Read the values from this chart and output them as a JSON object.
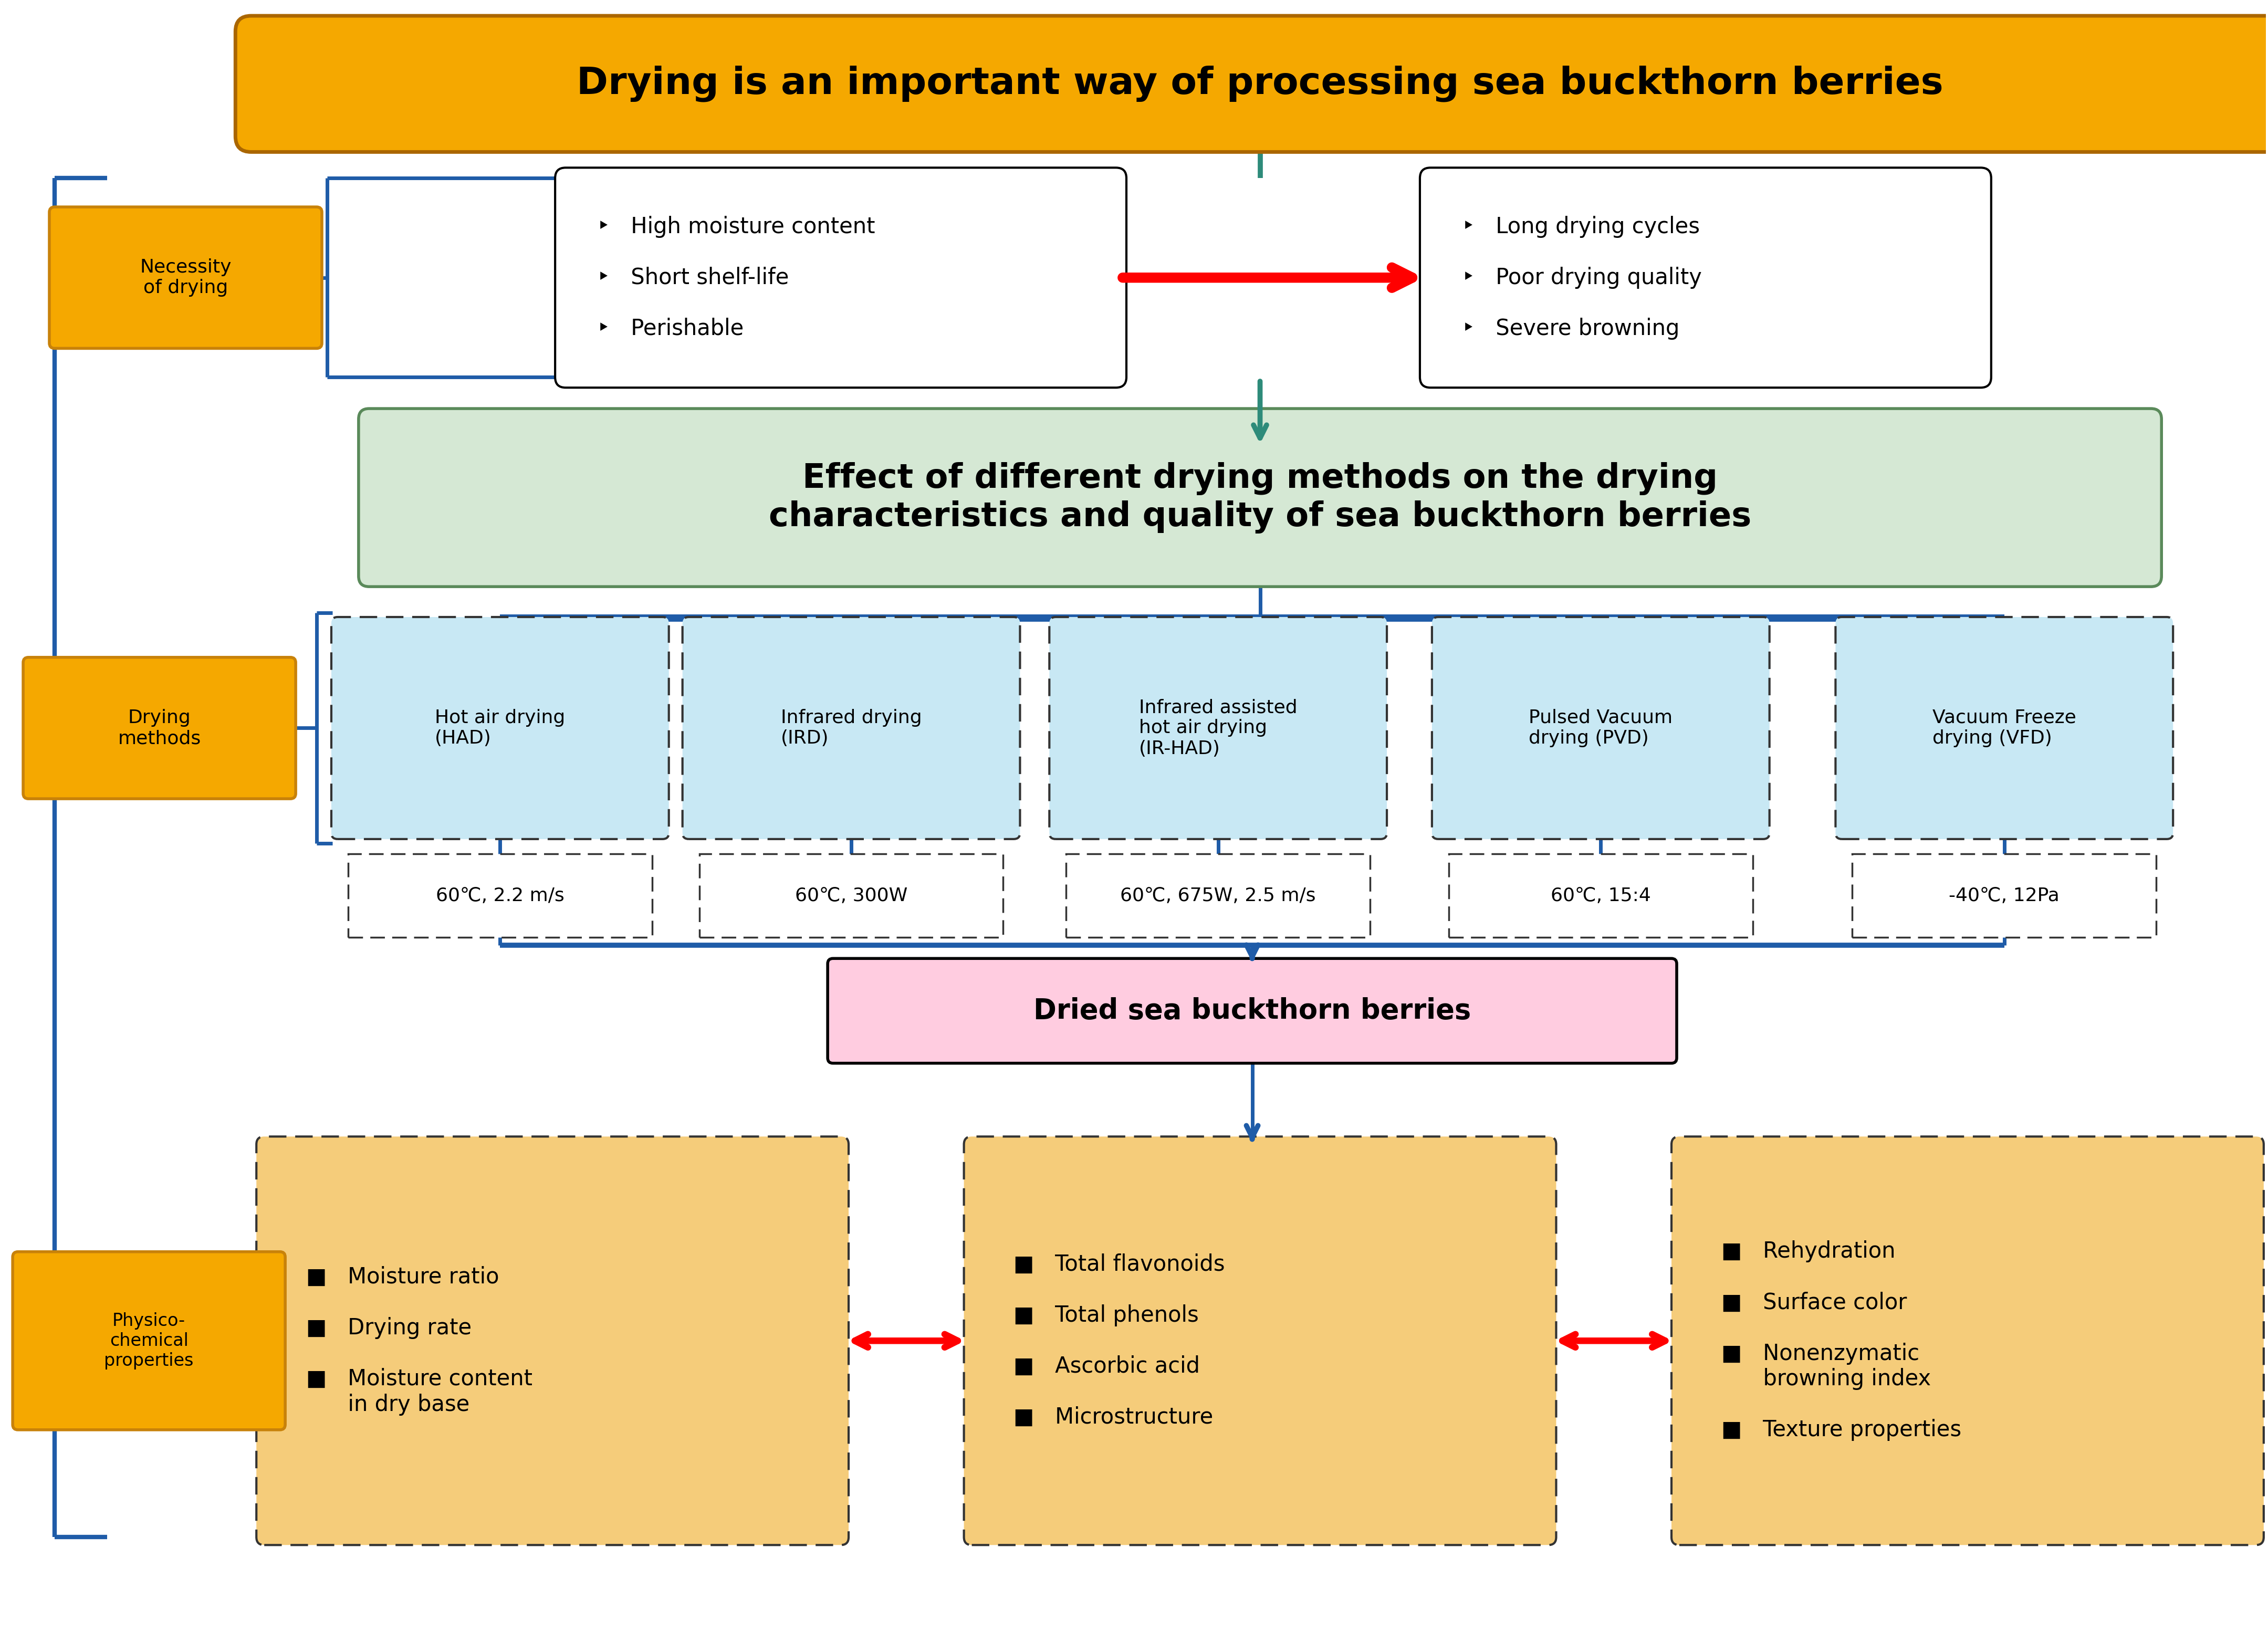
{
  "title_box": {
    "text": "Drying is an important way of processing sea buckthorn berries",
    "bg_color": "#F5A800",
    "text_color": "#000000",
    "fontsize": 52,
    "bold": true
  },
  "necessity_label": {
    "text": "Necessity\nof drying",
    "bg_color": "#F5A800",
    "text_color": "#000000",
    "border_color": "#C8820A",
    "fontsize": 26
  },
  "left_box": {
    "text": "‣   High moisture content\n\n‣   Short shelf-life\n\n‣   Perishable",
    "bg_color": "#FFFFFF",
    "text_color": "#000000",
    "fontsize": 30
  },
  "right_box": {
    "text": "‣   Long drying cycles\n\n‣   Poor drying quality\n\n‣   Severe browning",
    "bg_color": "#FFFFFF",
    "text_color": "#000000",
    "fontsize": 30
  },
  "green_box": {
    "text": "Effect of different drying methods on the drying\ncharacteristics and quality of sea buckthorn berries",
    "bg_color": "#D5E8D4",
    "text_color": "#000000",
    "fontsize": 46,
    "bold": true
  },
  "drying_methods_label": {
    "text": "Drying\nmethods",
    "bg_color": "#F5A800",
    "text_color": "#000000",
    "border_color": "#C8820A",
    "fontsize": 26
  },
  "method_boxes": [
    {
      "text": "Hot air drying\n(HAD)",
      "bg_color": "#C8E8F4",
      "text_color": "#000000"
    },
    {
      "text": "Infrared drying\n(IRD)",
      "bg_color": "#C8E8F4",
      "text_color": "#000000"
    },
    {
      "text": "Infrared assisted\nhot air drying\n(IR-HAD)",
      "bg_color": "#C8E8F4",
      "text_color": "#000000"
    },
    {
      "text": "Pulsed Vacuum\ndrying (PVD)",
      "bg_color": "#C8E8F4",
      "text_color": "#000000"
    },
    {
      "text": "Vacuum Freeze\ndrying (VFD)",
      "bg_color": "#C8E8F4",
      "text_color": "#000000"
    }
  ],
  "param_boxes": [
    {
      "text": "60℃, 2.2 m/s"
    },
    {
      "text": "60℃, 300W"
    },
    {
      "text": "60℃, 675W, 2.5 m/s"
    },
    {
      "text": "60℃, 15:4"
    },
    {
      "text": "-40℃, 12Pa"
    }
  ],
  "dried_box": {
    "text": "Dried sea buckthorn berries",
    "bg_color": "#FFCCE0",
    "text_color": "#000000",
    "fontsize": 38,
    "bold": true
  },
  "physico_label": {
    "text": "Physico-\nchemical\nproperties",
    "bg_color": "#F5A800",
    "text_color": "#000000",
    "border_color": "#C8820A",
    "fontsize": 24
  },
  "property_boxes": [
    {
      "text": "■   Moisture ratio\n\n■   Drying rate\n\n■   Moisture content\n      in dry base",
      "bg_color": "#F5CC7A",
      "text_color": "#000000",
      "fontsize": 30
    },
    {
      "text": "■   Total flavonoids\n\n■   Total phenols\n\n■   Ascorbic acid\n\n■   Microstructure",
      "bg_color": "#F5CC7A",
      "text_color": "#000000",
      "fontsize": 30
    },
    {
      "text": "■   Rehydration\n\n■   Surface color\n\n■   Nonenzymatic\n      browning index\n\n■   Texture properties",
      "bg_color": "#F5CC7A",
      "text_color": "#000000",
      "fontsize": 30
    }
  ],
  "blue_color": "#1F5CA8",
  "teal_color": "#2E8B7A",
  "bg_color": "#FFFFFF"
}
